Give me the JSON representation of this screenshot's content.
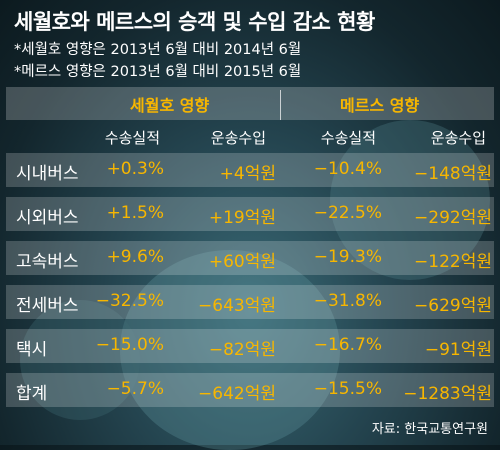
{
  "title": "세월호와 메르스의 승객 및 수입 감소 현황",
  "notes": [
    "*세월호 영향은 2013년 6월 대비 2014년 6월",
    "*메르스 영향은 2013년 6월 대비 2015년 6월"
  ],
  "source": "자료: 한국교통연구원",
  "colors": {
    "accent": "#f7b600",
    "text": "#ffffff",
    "background": "#1e3a44"
  },
  "chart_data": {
    "type": "table",
    "groups": [
      "세월호 영향",
      "메르스 영향"
    ],
    "columns": [
      "수송실적",
      "운송수입",
      "수송실적",
      "운송수입"
    ],
    "rows": [
      {
        "label": "시내버스",
        "values": [
          "+0.3%",
          "+4억원",
          "−10.4%",
          "−148억원"
        ]
      },
      {
        "label": "시외버스",
        "values": [
          "+1.5%",
          "+19억원",
          "−22.5%",
          "−292억원"
        ]
      },
      {
        "label": "고속버스",
        "values": [
          "+9.6%",
          "+60억원",
          "−19.3%",
          "−122억원"
        ]
      },
      {
        "label": "전세버스",
        "values": [
          "−32.5%",
          "−643억원",
          "−31.8%",
          "−629억원"
        ]
      },
      {
        "label": "택시",
        "values": [
          "−15.0%",
          "−82억원",
          "−16.7%",
          "−91억원"
        ]
      },
      {
        "label": "합계",
        "values": [
          "−5.7%",
          "−642억원",
          "−15.5%",
          "−1283억원"
        ]
      }
    ]
  }
}
